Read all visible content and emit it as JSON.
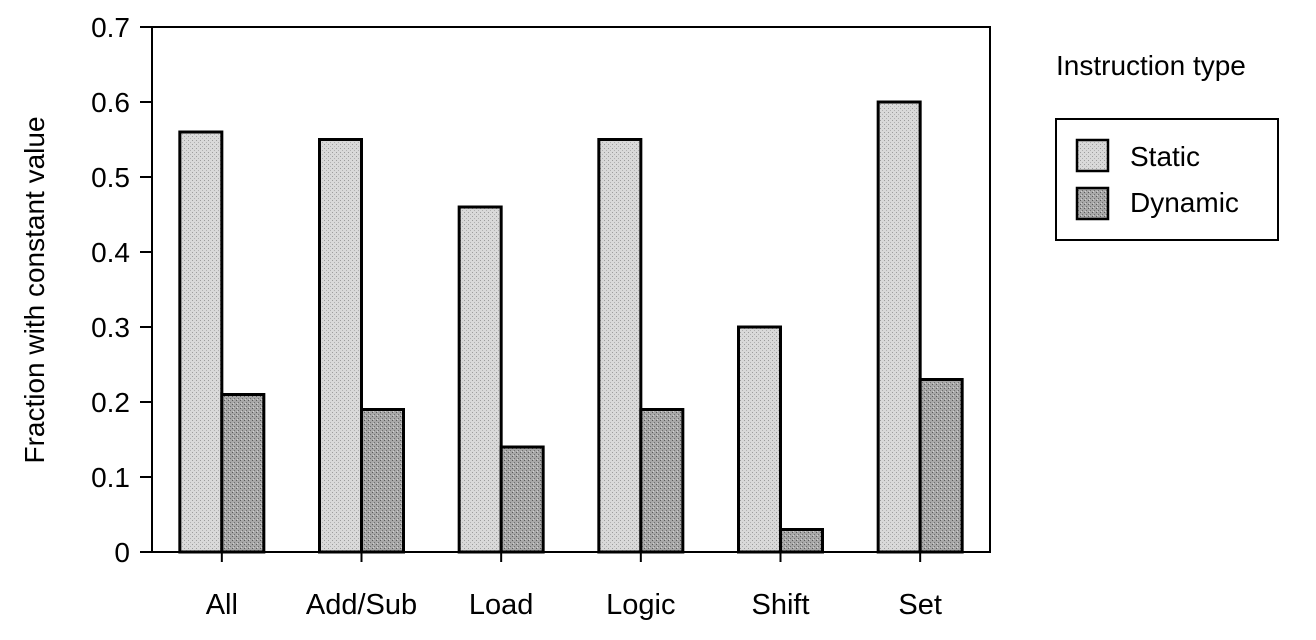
{
  "chart_data": {
    "type": "bar",
    "title": "",
    "xlabel": "",
    "ylabel": "Fraction with constant value",
    "ylim": [
      0,
      0.7
    ],
    "yticks": [
      "0",
      "0.1",
      "0.2",
      "0.3",
      "0.4",
      "0.5",
      "0.6",
      "0.7"
    ],
    "categories": [
      "All",
      "Add/Sub",
      "Load",
      "Logic",
      "Shift",
      "Set"
    ],
    "series": [
      {
        "name": "Static",
        "values": [
          0.56,
          0.55,
          0.46,
          0.55,
          0.3,
          0.6
        ],
        "color": "#d6d6d6"
      },
      {
        "name": "Dynamic",
        "values": [
          0.21,
          0.19,
          0.14,
          0.19,
          0.03,
          0.23
        ],
        "color": "#9a9a9a"
      }
    ],
    "legend": {
      "title": "Instruction type",
      "placement": "right"
    },
    "grid": false
  }
}
